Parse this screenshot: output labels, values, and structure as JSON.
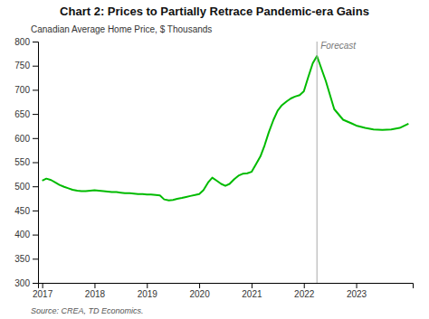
{
  "chart_data": {
    "type": "line",
    "title": "Chart 2: Prices to Partially Retrace Pandemic-era Gains",
    "ylabel": "Canadian Average Home Price, $ Thousands",
    "source": "Source: CREA,  TD Economics.",
    "color": "#00bb00",
    "grid": false,
    "x": [
      2017.0,
      2017.08,
      2017.17,
      2017.25,
      2017.33,
      2017.42,
      2017.5,
      2017.58,
      2017.67,
      2017.75,
      2017.83,
      2017.92,
      2018.0,
      2018.08,
      2018.17,
      2018.25,
      2018.33,
      2018.42,
      2018.5,
      2018.58,
      2018.67,
      2018.75,
      2018.83,
      2018.92,
      2019.0,
      2019.08,
      2019.17,
      2019.25,
      2019.33,
      2019.42,
      2019.5,
      2019.58,
      2019.67,
      2019.75,
      2019.83,
      2019.92,
      2020.0,
      2020.08,
      2020.17,
      2020.25,
      2020.33,
      2020.42,
      2020.5,
      2020.58,
      2020.67,
      2020.75,
      2020.83,
      2020.92,
      2021.0,
      2021.08,
      2021.17,
      2021.25,
      2021.33,
      2021.42,
      2021.5,
      2021.58,
      2021.67,
      2021.75,
      2021.83,
      2021.92,
      2022.0,
      2022.08,
      2022.17,
      2022.25,
      2022.25,
      2022.42,
      2022.58,
      2022.75,
      2022.92,
      2023.0,
      2023.17,
      2023.33,
      2023.5,
      2023.67,
      2023.83,
      2024.0
    ],
    "values": [
      512,
      516,
      513,
      508,
      503,
      499,
      496,
      493,
      491,
      490,
      490,
      491,
      492,
      491,
      490,
      489,
      488,
      488,
      487,
      486,
      486,
      485,
      484,
      484,
      483,
      483,
      482,
      481,
      473,
      471,
      472,
      474,
      476,
      478,
      480,
      482,
      484,
      492,
      508,
      518,
      512,
      505,
      501,
      505,
      515,
      522,
      526,
      527,
      530,
      545,
      562,
      585,
      612,
      638,
      657,
      668,
      676,
      682,
      686,
      689,
      697,
      725,
      755,
      770,
      770,
      718,
      660,
      638,
      630,
      626,
      621,
      618,
      617,
      618,
      621,
      630
    ],
    "annotations": [
      {
        "x": 2022.25,
        "text": "Forecast",
        "color": "#aaaaaa"
      }
    ],
    "xlim": [
      2016.92,
      2024.08
    ],
    "xticks": [
      2017,
      2018,
      2019,
      2020,
      2021,
      2022,
      2023
    ],
    "ylim": [
      300,
      800
    ],
    "yticks": [
      300,
      350,
      400,
      450,
      500,
      550,
      600,
      650,
      700,
      750,
      800
    ]
  }
}
